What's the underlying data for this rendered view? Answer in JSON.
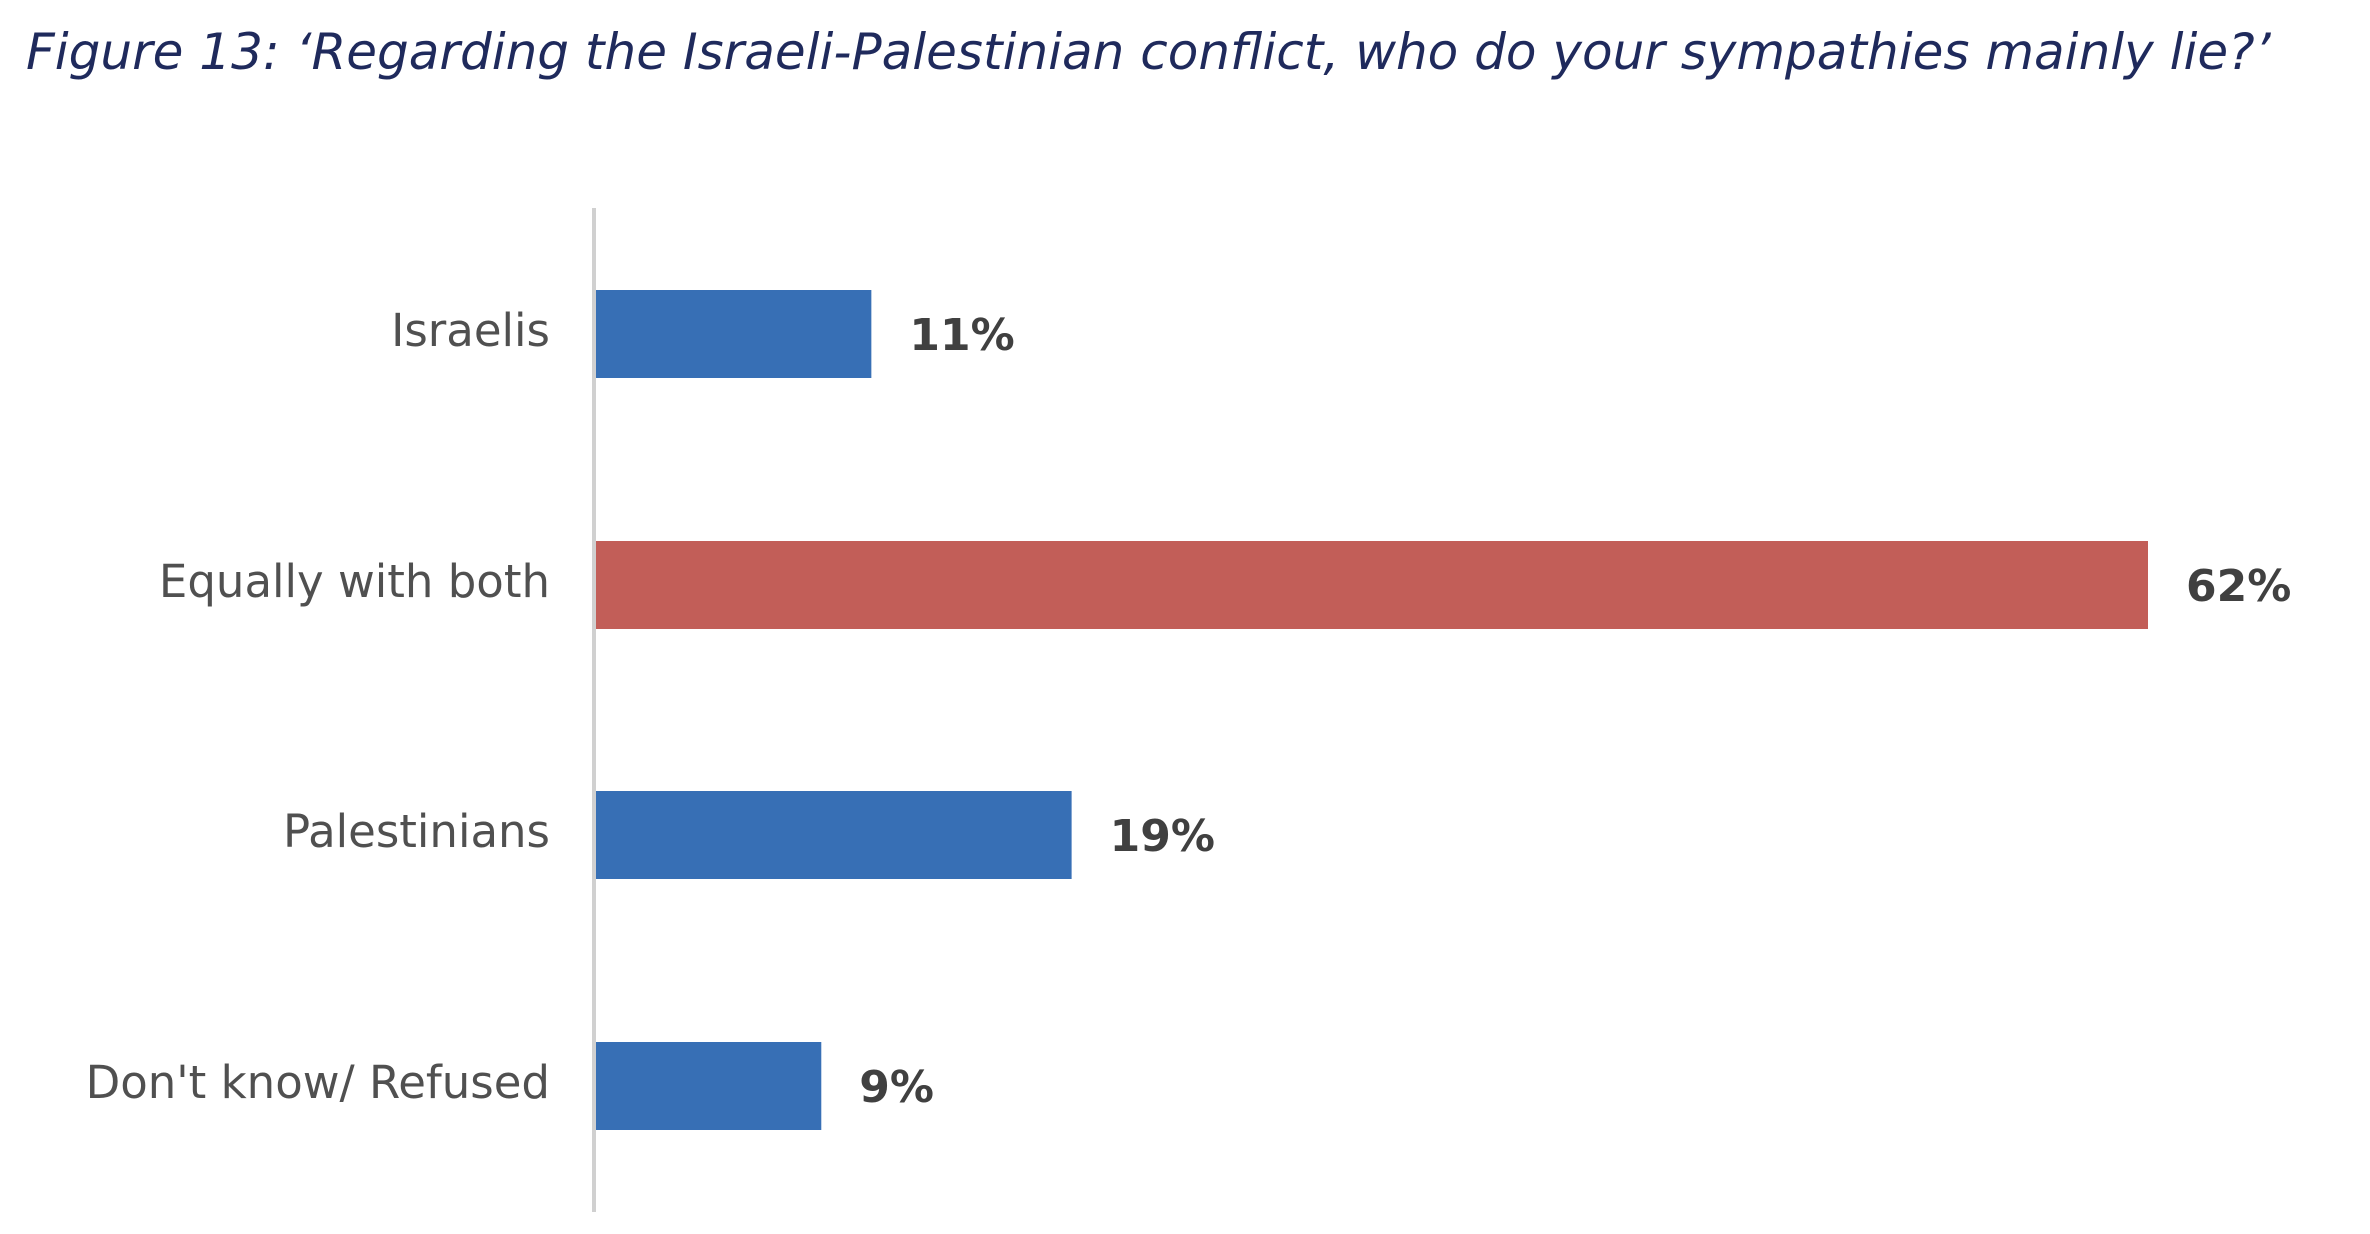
{
  "title": "Figure 13: ‘Regarding the Israeli-Palestinian conflict, who do your sympathies mainly lie?’",
  "chart_data": {
    "type": "bar",
    "orientation": "horizontal",
    "title": "Figure 13: ‘Regarding the Israeli-Palestinian conflict, who do your sympathies mainly lie?’",
    "categories": [
      "Israelis",
      "Equally with both",
      "Palestinians",
      "Don't know/ Refused"
    ],
    "values": [
      11,
      62,
      19,
      9
    ],
    "value_labels": [
      "11%",
      "62%",
      "19%",
      "9%"
    ],
    "colors": [
      "#376fb5",
      "#c25e58",
      "#376fb5",
      "#376fb5"
    ],
    "xlabel": "",
    "ylabel": "",
    "xlim": [
      0,
      62
    ],
    "unit": "%",
    "grid": false,
    "legend": "none"
  }
}
